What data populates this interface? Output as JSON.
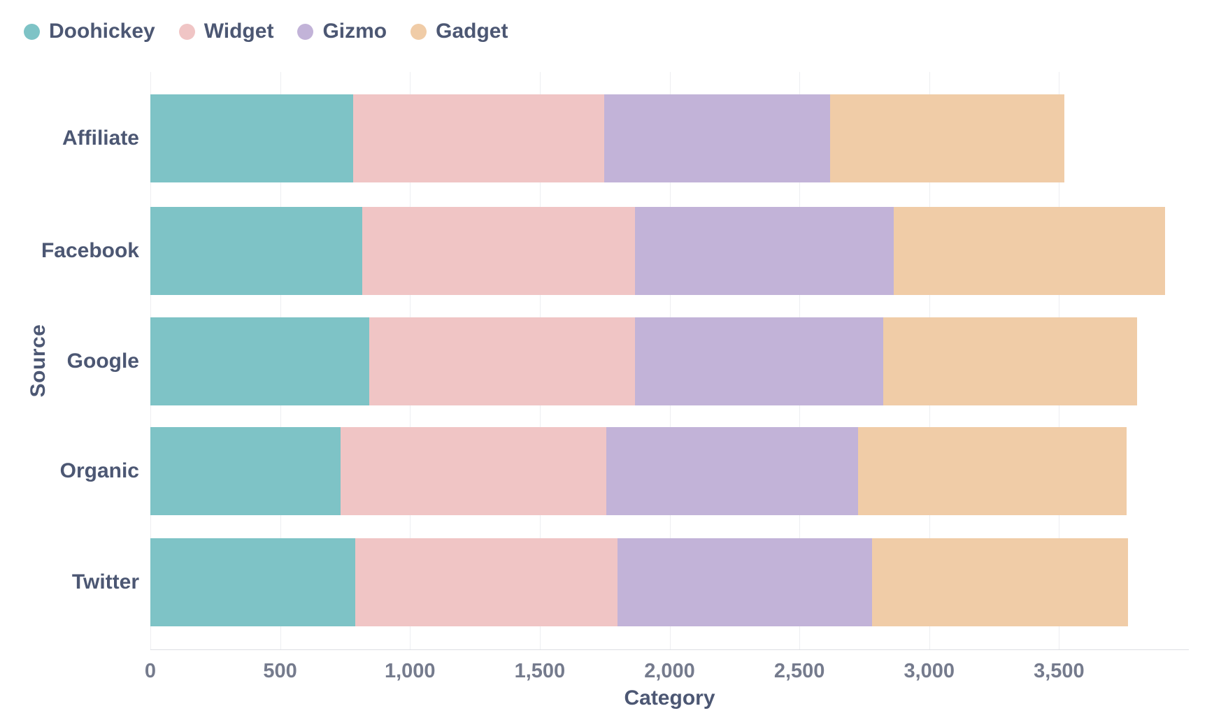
{
  "chart_data": {
    "type": "bar",
    "orientation": "horizontal",
    "stacked": true,
    "title": "",
    "xlabel": "Category",
    "ylabel": "Source",
    "categories": [
      "Affiliate",
      "Facebook",
      "Google",
      "Organic",
      "Twitter"
    ],
    "series": [
      {
        "name": "Doohickey",
        "color": "#7EC3C6",
        "values": [
          782,
          815,
          842,
          734,
          790
        ]
      },
      {
        "name": "Widget",
        "color": "#F0C5C5",
        "values": [
          965,
          1053,
          1026,
          1023,
          1008
        ]
      },
      {
        "name": "Gizmo",
        "color": "#C2B3D8",
        "values": [
          872,
          996,
          956,
          970,
          983
        ]
      },
      {
        "name": "Gadget",
        "color": "#F0CCA7",
        "values": [
          902,
          1045,
          977,
          1034,
          986
        ]
      }
    ],
    "row_totals": [
      3521,
      3909,
      3801,
      3761,
      3767
    ],
    "xlim": [
      0,
      4000
    ],
    "x_ticks": [
      {
        "value": 0,
        "label": "0"
      },
      {
        "value": 500,
        "label": "500"
      },
      {
        "value": 1000,
        "label": "1,000"
      },
      {
        "value": 1500,
        "label": "1,500"
      },
      {
        "value": 2000,
        "label": "2,000"
      },
      {
        "value": 2500,
        "label": "2,500"
      },
      {
        "value": 3000,
        "label": "3,000"
      },
      {
        "value": 3500,
        "label": "3,500"
      }
    ],
    "grid": "vertical",
    "legend_position": "top-left"
  },
  "legend": {
    "items": [
      {
        "label": "Doohickey",
        "color": "#7EC3C6"
      },
      {
        "label": "Widget",
        "color": "#F0C5C5"
      },
      {
        "label": "Gizmo",
        "color": "#C2B3D8"
      },
      {
        "label": "Gadget",
        "color": "#F0CCA7"
      }
    ]
  },
  "colors": {
    "axis_title": "#4C5773",
    "tick_label": "#757B8D",
    "gridline": "#EDEEF1",
    "axis_line": "#DCDEE3",
    "background": "#FFFFFF"
  }
}
